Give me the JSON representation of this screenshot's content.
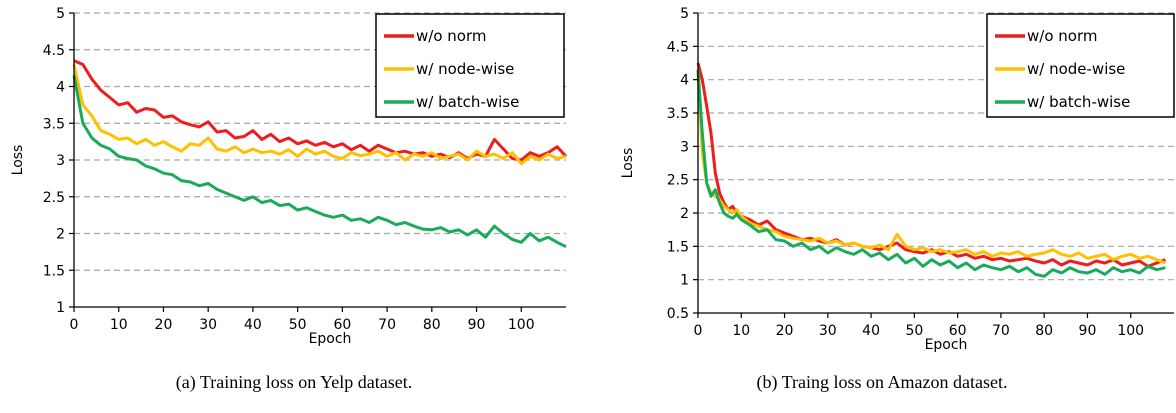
{
  "charts": [
    {
      "caption": "(a) Training loss on Yelp dataset.",
      "chart_data": {
        "type": "line",
        "title": "",
        "xlabel": "Epoch",
        "ylabel": "Loss",
        "xlim": [
          0,
          110
        ],
        "ylim": [
          1,
          5
        ],
        "xticks": [
          0,
          10,
          20,
          30,
          40,
          50,
          60,
          70,
          80,
          90,
          100
        ],
        "yticks": [
          1,
          1.5,
          2,
          2.5,
          3,
          3.5,
          4,
          4.5,
          5
        ],
        "ytick_labels": [
          "1",
          "1.5",
          "2",
          "2.5",
          "3",
          "3.5",
          "4",
          "4.5",
          "5"
        ],
        "grid": "horizontal dashed",
        "legend_position": "top-right",
        "series": [
          {
            "name": "w/o norm",
            "color": "#ee1c1c",
            "x": [
              0,
              2,
              4,
              6,
              8,
              10,
              12,
              14,
              16,
              18,
              20,
              22,
              24,
              26,
              28,
              30,
              32,
              34,
              36,
              38,
              40,
              42,
              44,
              46,
              48,
              50,
              52,
              54,
              56,
              58,
              60,
              62,
              64,
              66,
              68,
              70,
              72,
              74,
              76,
              78,
              80,
              82,
              84,
              86,
              88,
              90,
              92,
              94,
              96,
              98,
              100,
              102,
              104,
              106,
              108,
              110
            ],
            "y": [
              4.35,
              4.3,
              4.1,
              3.95,
              3.85,
              3.75,
              3.78,
              3.65,
              3.7,
              3.68,
              3.58,
              3.6,
              3.52,
              3.48,
              3.45,
              3.52,
              3.38,
              3.4,
              3.3,
              3.32,
              3.4,
              3.28,
              3.35,
              3.25,
              3.3,
              3.22,
              3.26,
              3.2,
              3.24,
              3.18,
              3.22,
              3.14,
              3.2,
              3.12,
              3.2,
              3.15,
              3.1,
              3.12,
              3.08,
              3.1,
              3.05,
              3.08,
              3.03,
              3.1,
              3.02,
              3.08,
              3.05,
              3.28,
              3.15,
              3.02,
              3.0,
              3.1,
              3.05,
              3.1,
              3.18,
              3.05
            ]
          },
          {
            "name": "w/ node-wise",
            "color": "#ffc000",
            "x": [
              0,
              2,
              4,
              6,
              8,
              10,
              12,
              14,
              16,
              18,
              20,
              22,
              24,
              26,
              28,
              30,
              32,
              34,
              36,
              38,
              40,
              42,
              44,
              46,
              48,
              50,
              52,
              54,
              56,
              58,
              60,
              62,
              64,
              66,
              68,
              70,
              72,
              74,
              76,
              78,
              80,
              82,
              84,
              86,
              88,
              90,
              92,
              94,
              96,
              98,
              100,
              102,
              104,
              106,
              108,
              110
            ],
            "y": [
              4.3,
              3.75,
              3.6,
              3.4,
              3.35,
              3.28,
              3.3,
              3.22,
              3.28,
              3.2,
              3.25,
              3.18,
              3.12,
              3.22,
              3.2,
              3.3,
              3.15,
              3.12,
              3.18,
              3.1,
              3.15,
              3.1,
              3.12,
              3.08,
              3.14,
              3.05,
              3.15,
              3.08,
              3.12,
              3.05,
              3.02,
              3.1,
              3.06,
              3.08,
              3.12,
              3.05,
              3.1,
              3.0,
              3.08,
              3.05,
              3.1,
              3.02,
              3.05,
              3.08,
              3.0,
              3.12,
              3.05,
              3.08,
              3.02,
              3.1,
              2.95,
              3.05,
              3.0,
              3.08,
              3.02,
              3.05
            ]
          },
          {
            "name": "w/ batch-wise",
            "color": "#1aaa5a",
            "x": [
              0,
              2,
              4,
              6,
              8,
              10,
              12,
              14,
              16,
              18,
              20,
              22,
              24,
              26,
              28,
              30,
              32,
              34,
              36,
              38,
              40,
              42,
              44,
              46,
              48,
              50,
              52,
              54,
              56,
              58,
              60,
              62,
              64,
              66,
              68,
              70,
              72,
              74,
              76,
              78,
              80,
              82,
              84,
              86,
              88,
              90,
              92,
              94,
              96,
              98,
              100,
              102,
              104,
              106,
              108,
              110
            ],
            "y": [
              4.15,
              3.5,
              3.3,
              3.2,
              3.15,
              3.05,
              3.02,
              3.0,
              2.92,
              2.88,
              2.82,
              2.8,
              2.72,
              2.7,
              2.65,
              2.68,
              2.6,
              2.55,
              2.5,
              2.45,
              2.5,
              2.42,
              2.45,
              2.38,
              2.4,
              2.32,
              2.35,
              2.3,
              2.25,
              2.22,
              2.25,
              2.18,
              2.2,
              2.15,
              2.22,
              2.18,
              2.12,
              2.15,
              2.1,
              2.06,
              2.05,
              2.08,
              2.02,
              2.05,
              1.98,
              2.05,
              1.95,
              2.1,
              2.0,
              1.92,
              1.88,
              2.0,
              1.9,
              1.95,
              1.88,
              1.82
            ]
          }
        ]
      }
    },
    {
      "caption": "(b) Traing loss on Amazon dataset.",
      "chart_data": {
        "type": "line",
        "title": "",
        "xlabel": "Epoch",
        "ylabel": "Loss",
        "xlim": [
          0,
          110
        ],
        "ylim": [
          0.5,
          5
        ],
        "xticks": [
          0,
          10,
          20,
          30,
          40,
          50,
          60,
          70,
          80,
          90,
          100
        ],
        "yticks": [
          0.5,
          1,
          1.5,
          2,
          2.5,
          3,
          3.5,
          4,
          4.5,
          5
        ],
        "ytick_labels": [
          "0.5",
          "1",
          "1.5",
          "2",
          "2.5",
          "3",
          "3.5",
          "4",
          "4.5",
          "5"
        ],
        "grid": "horizontal dashed",
        "legend_position": "top-right",
        "series": [
          {
            "name": "w/o norm",
            "color": "#ee1c1c",
            "x": [
              0,
              1,
              2,
              3,
              4,
              5,
              6,
              7,
              8,
              9,
              10,
              12,
              14,
              16,
              18,
              20,
              22,
              24,
              26,
              28,
              30,
              32,
              34,
              36,
              38,
              40,
              42,
              44,
              46,
              48,
              50,
              52,
              54,
              56,
              58,
              60,
              62,
              64,
              66,
              68,
              70,
              72,
              74,
              76,
              78,
              80,
              82,
              84,
              86,
              88,
              90,
              92,
              94,
              96,
              98,
              100,
              102,
              104,
              106,
              108
            ],
            "y": [
              4.25,
              4.0,
              3.6,
              3.2,
              2.6,
              2.3,
              2.15,
              2.05,
              2.1,
              2.0,
              1.95,
              1.9,
              1.82,
              1.88,
              1.75,
              1.7,
              1.65,
              1.6,
              1.62,
              1.58,
              1.55,
              1.6,
              1.52,
              1.55,
              1.5,
              1.48,
              1.45,
              1.5,
              1.55,
              1.45,
              1.42,
              1.4,
              1.45,
              1.38,
              1.42,
              1.35,
              1.38,
              1.32,
              1.35,
              1.3,
              1.32,
              1.28,
              1.3,
              1.32,
              1.28,
              1.25,
              1.3,
              1.22,
              1.28,
              1.25,
              1.22,
              1.28,
              1.25,
              1.3,
              1.22,
              1.25,
              1.28,
              1.2,
              1.25,
              1.3
            ]
          },
          {
            "name": "w/ node-wise",
            "color": "#ffc000",
            "x": [
              0,
              1,
              2,
              3,
              4,
              5,
              6,
              7,
              8,
              9,
              10,
              12,
              14,
              16,
              18,
              20,
              22,
              24,
              26,
              28,
              30,
              32,
              34,
              36,
              38,
              40,
              42,
              44,
              46,
              48,
              50,
              52,
              54,
              56,
              58,
              60,
              62,
              64,
              66,
              68,
              70,
              72,
              74,
              76,
              78,
              80,
              82,
              84,
              86,
              88,
              90,
              92,
              94,
              96,
              98,
              100,
              102,
              104,
              106,
              108
            ],
            "y": [
              4.1,
              2.9,
              2.45,
              2.3,
              2.25,
              2.2,
              2.1,
              2.05,
              2.0,
              2.05,
              1.95,
              1.85,
              1.8,
              1.75,
              1.72,
              1.65,
              1.62,
              1.6,
              1.58,
              1.62,
              1.55,
              1.58,
              1.52,
              1.55,
              1.5,
              1.48,
              1.52,
              1.45,
              1.68,
              1.5,
              1.45,
              1.48,
              1.42,
              1.45,
              1.4,
              1.42,
              1.45,
              1.38,
              1.42,
              1.35,
              1.4,
              1.38,
              1.42,
              1.35,
              1.38,
              1.4,
              1.45,
              1.38,
              1.35,
              1.4,
              1.32,
              1.35,
              1.38,
              1.3,
              1.35,
              1.38,
              1.32,
              1.35,
              1.3,
              1.25
            ]
          },
          {
            "name": "w/ batch-wise",
            "color": "#1aaa5a",
            "x": [
              0,
              1,
              2,
              3,
              4,
              5,
              6,
              7,
              8,
              9,
              10,
              12,
              14,
              16,
              18,
              20,
              22,
              24,
              26,
              28,
              30,
              32,
              34,
              36,
              38,
              40,
              42,
              44,
              46,
              48,
              50,
              52,
              54,
              56,
              58,
              60,
              62,
              64,
              66,
              68,
              70,
              72,
              74,
              76,
              78,
              80,
              82,
              84,
              86,
              88,
              90,
              92,
              94,
              96,
              98,
              100,
              102,
              104,
              106,
              108
            ],
            "y": [
              4.15,
              3.2,
              2.45,
              2.25,
              2.35,
              2.15,
              2.0,
              1.95,
              1.92,
              1.98,
              1.9,
              1.82,
              1.72,
              1.75,
              1.6,
              1.58,
              1.5,
              1.55,
              1.45,
              1.5,
              1.4,
              1.48,
              1.42,
              1.38,
              1.45,
              1.35,
              1.4,
              1.3,
              1.38,
              1.25,
              1.32,
              1.2,
              1.3,
              1.22,
              1.28,
              1.18,
              1.25,
              1.15,
              1.22,
              1.18,
              1.15,
              1.2,
              1.12,
              1.18,
              1.08,
              1.05,
              1.15,
              1.1,
              1.18,
              1.12,
              1.1,
              1.15,
              1.08,
              1.18,
              1.12,
              1.15,
              1.1,
              1.2,
              1.15,
              1.18
            ]
          }
        ]
      }
    }
  ]
}
